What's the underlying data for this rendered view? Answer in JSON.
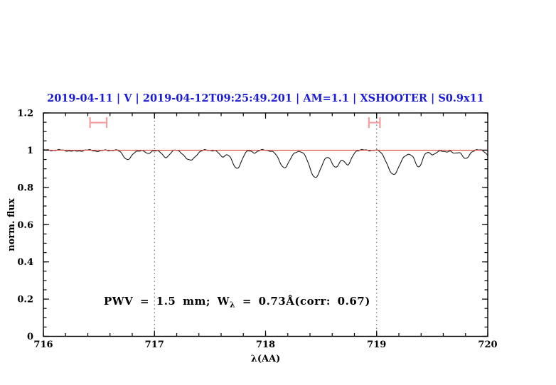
{
  "title": "2019-04-11 | V | 2019-04-12T09:25:49.201 | AM=1.1 | XSHOOTER | S0.9x11",
  "annotation": {
    "pre": "PWV = 1.5 mm; W",
    "sub": "λ",
    "post": " = 0.73Å(corr: 0.67)"
  },
  "colors": {
    "title_blue": "#1a1ad9",
    "annotation_blue": "#1a1ad9",
    "continuum_red": "#e04b4b",
    "marker_pink": "#f2a0a0",
    "spectrum_black": "#1a1a1a",
    "guide_gray": "#555555",
    "frame_black": "#000000"
  },
  "axes": {
    "x": {
      "label": "λ(AA)",
      "min": 716,
      "max": 720,
      "major_step": 1,
      "minor_step": 0.2,
      "tick_labels": [
        "716",
        "717",
        "718",
        "719",
        "720"
      ]
    },
    "y": {
      "label": "norm. flux",
      "min": 0,
      "max": 1.2,
      "major_step": 0.2,
      "minor_step": 0.05,
      "tick_labels": [
        "0",
        "0.2",
        "0.4",
        "0.6",
        "0.8",
        "1",
        "1.2"
      ]
    }
  },
  "chart_data": {
    "type": "line",
    "title": "2019-04-11 | V | 2019-04-12T09:25:49.201 | AM=1.1 | XSHOOTER | S0.9x11",
    "xlabel": "λ(AA)",
    "ylabel": "norm. flux",
    "xlim": [
      716,
      720
    ],
    "ylim": [
      0,
      1.2
    ],
    "grid": false,
    "legend": false,
    "continuum_level": 1.0,
    "reference_line": {
      "y": 1.0
    },
    "vertical_guides": [
      717,
      719
    ],
    "range_markers": [
      {
        "x_start": 716.42,
        "x_end": 716.57,
        "y": 1.148,
        "cap_half_height": 0.029
      },
      {
        "x_start": 718.93,
        "x_end": 719.03,
        "y": 1.148,
        "cap_half_height": 0.029
      }
    ],
    "absorption_lines": [
      {
        "center": 716.28,
        "depth": 0.006,
        "sigma": 0.045
      },
      {
        "center": 716.5,
        "depth": 0.005,
        "sigma": 0.035
      },
      {
        "center": 716.76,
        "depth": 0.05,
        "sigma": 0.038
      },
      {
        "center": 716.94,
        "depth": 0.021,
        "sigma": 0.022
      },
      {
        "center": 717.1,
        "depth": 0.038,
        "sigma": 0.033
      },
      {
        "center": 717.32,
        "depth": 0.056,
        "sigma": 0.046
      },
      {
        "center": 717.61,
        "depth": 0.035,
        "sigma": 0.028
      },
      {
        "center": 717.74,
        "depth": 0.098,
        "sigma": 0.042
      },
      {
        "center": 717.9,
        "depth": 0.012,
        "sigma": 0.025
      },
      {
        "center": 718.17,
        "depth": 0.092,
        "sigma": 0.048
      },
      {
        "center": 718.45,
        "depth": 0.146,
        "sigma": 0.054
      },
      {
        "center": 718.63,
        "depth": 0.094,
        "sigma": 0.038
      },
      {
        "center": 718.74,
        "depth": 0.08,
        "sigma": 0.032
      },
      {
        "center": 719.15,
        "depth": 0.133,
        "sigma": 0.052
      },
      {
        "center": 719.28,
        "depth": 0.02,
        "sigma": 0.04
      },
      {
        "center": 719.38,
        "depth": 0.092,
        "sigma": 0.032
      },
      {
        "center": 719.51,
        "depth": 0.026,
        "sigma": 0.028
      },
      {
        "center": 719.63,
        "depth": 0.01,
        "sigma": 0.022
      },
      {
        "center": 719.7,
        "depth": 0.015,
        "sigma": 0.025
      },
      {
        "center": 719.8,
        "depth": 0.048,
        "sigma": 0.03
      },
      {
        "center": 720.02,
        "depth": 0.035,
        "sigma": 0.028
      }
    ],
    "noise": [
      {
        "amp": 0.0028,
        "period": 0.13,
        "phase": 0.7
      },
      {
        "amp": 0.0016,
        "period": 0.047,
        "phase": 2.1
      }
    ],
    "sample_step": 0.008
  }
}
